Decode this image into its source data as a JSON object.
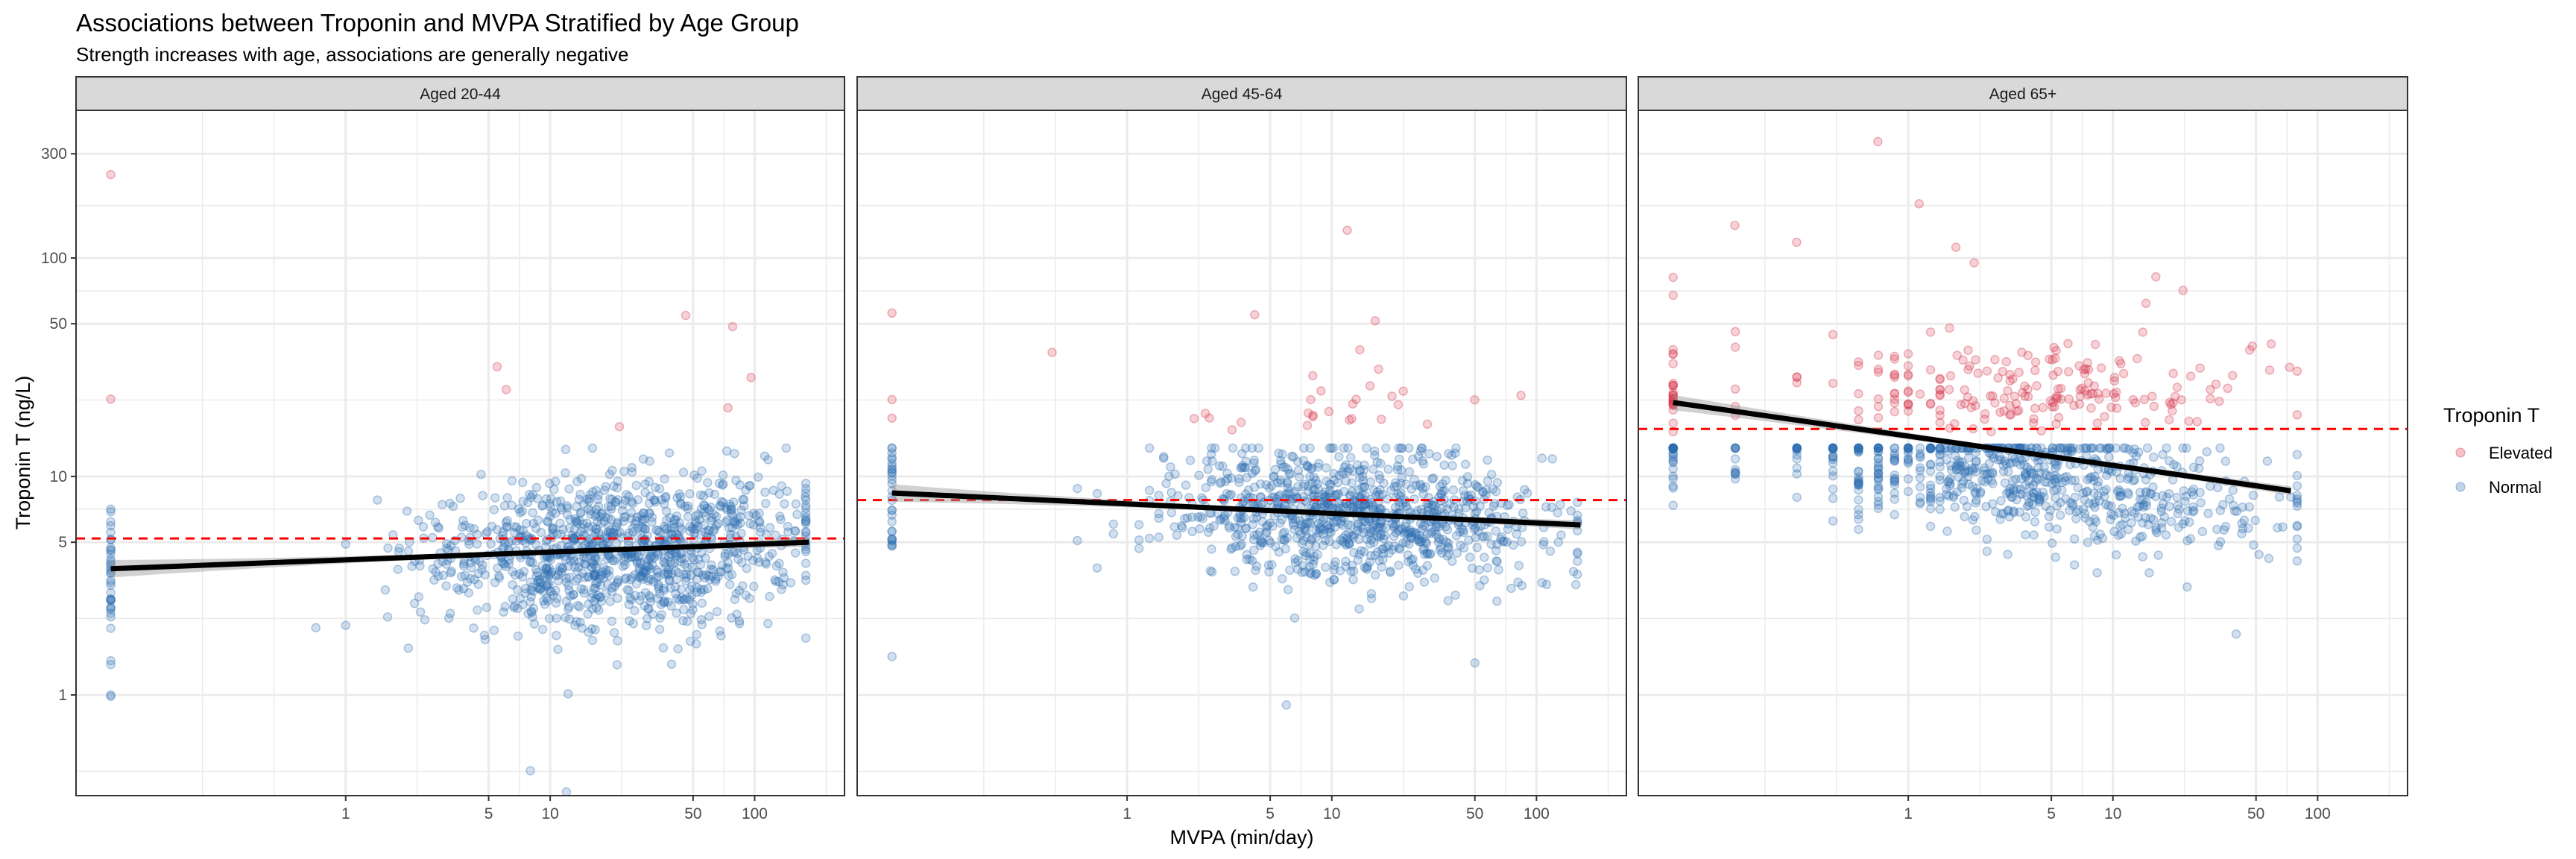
{
  "chart_data": {
    "type": "scatter",
    "title": "Associations between Troponin and MVPA Stratified by Age Group",
    "subtitle": "Strength increases with age, associations are generally negative",
    "xlabel": "MVPA (min/day)",
    "ylabel": "Troponin T (ng/L)",
    "x_scale": "log10",
    "y_scale": "log10",
    "xlim": [
      0.048,
      275
    ],
    "ylim": [
      0.346,
      474
    ],
    "x_ticks": [
      {
        "value": 1,
        "label": "1"
      },
      {
        "value": 5,
        "label": "5"
      },
      {
        "value": 10,
        "label": "10"
      },
      {
        "value": 50,
        "label": "50"
      },
      {
        "value": 100,
        "label": "100"
      }
    ],
    "y_ticks": [
      {
        "value": 1,
        "label": "1"
      },
      {
        "value": 5,
        "label": "5"
      },
      {
        "value": 10,
        "label": "10"
      },
      {
        "value": 50,
        "label": "50"
      },
      {
        "value": 100,
        "label": "100"
      },
      {
        "value": 300,
        "label": "300"
      }
    ],
    "x_minor_log": [
      -0.7,
      -0.35,
      0.35,
      0.85,
      1.35,
      1.85,
      2.35
    ],
    "y_minor_log": [
      -0.35,
      0.35,
      0.85,
      1.35,
      1.85,
      2.24
    ],
    "grid": true,
    "zero_plotted_at": 0.071,
    "legend": {
      "title": "Troponin T",
      "position": "right",
      "entries": [
        {
          "label": "Elevated",
          "color": "#d6334a"
        },
        {
          "label": "Normal",
          "color": "#2f6fb3"
        }
      ]
    },
    "panels": [
      {
        "label": "Aged 20-44",
        "threshold": 5.2,
        "fit": {
          "x": [
            0.071,
            184
          ],
          "y": [
            3.78,
            5.0
          ]
        },
        "se_log": {
          "center": 0.01,
          "edge": 0.04
        },
        "notable_points": [
          {
            "x": 0.071,
            "y": 241,
            "group": "Elevated"
          },
          {
            "x": 0.071,
            "y": 22.6,
            "group": "Elevated"
          },
          {
            "x": 46,
            "y": 54.6,
            "group": "Elevated"
          },
          {
            "x": 78,
            "y": 48.5,
            "group": "Elevated"
          },
          {
            "x": 5.5,
            "y": 31.8,
            "group": "Elevated"
          },
          {
            "x": 6.1,
            "y": 25,
            "group": "Elevated"
          },
          {
            "x": 96,
            "y": 28.4,
            "group": "Elevated"
          },
          {
            "x": 74,
            "y": 20.6,
            "group": "Elevated"
          },
          {
            "x": 21.8,
            "y": 16.9,
            "group": "Elevated"
          },
          {
            "x": 0.071,
            "y": 1.0,
            "group": "Normal"
          },
          {
            "x": 8,
            "y": 0.45,
            "group": "Normal"
          },
          {
            "x": 12,
            "y": 0.36,
            "group": "Normal"
          }
        ],
        "cloud": {
          "seed": 11,
          "n_normal": 1150,
          "zero_frac": 0.04,
          "x_log_mean": 1.35,
          "x_log_sd": 0.45,
          "x_log_max": 2.25,
          "y_log_mean": 0.66,
          "y_slope": 0.05,
          "y_log_sd": 0.17,
          "n_elevated": 0,
          "elev_y_log_mean": 1.3,
          "elev_y_log_sd": 0.1
        }
      },
      {
        "label": "Aged 45-64",
        "threshold": 7.8,
        "fit": {
          "x": [
            0.071,
            164
          ],
          "y": [
            8.4,
            6.0
          ]
        },
        "se_log": {
          "center": 0.01,
          "edge": 0.04
        },
        "notable_points": [
          {
            "x": 11.9,
            "y": 134,
            "group": "Elevated"
          },
          {
            "x": 0.071,
            "y": 56,
            "group": "Elevated"
          },
          {
            "x": 4.2,
            "y": 55,
            "group": "Elevated"
          },
          {
            "x": 16.3,
            "y": 51.6,
            "group": "Elevated"
          },
          {
            "x": 0.43,
            "y": 37,
            "group": "Elevated"
          },
          {
            "x": 13.7,
            "y": 38,
            "group": "Elevated"
          },
          {
            "x": 0.071,
            "y": 18.5,
            "group": "Elevated"
          },
          {
            "x": 84,
            "y": 23.5,
            "group": "Elevated"
          },
          {
            "x": 0.071,
            "y": 1.5,
            "group": "Normal"
          },
          {
            "x": 6,
            "y": 0.9,
            "group": "Normal"
          },
          {
            "x": 50,
            "y": 1.4,
            "group": "Normal"
          }
        ],
        "cloud": {
          "seed": 23,
          "n_normal": 1000,
          "zero_frac": 0.02,
          "x_log_mean": 1.1,
          "x_log_sd": 0.45,
          "x_log_max": 2.2,
          "y_log_mean": 0.82,
          "y_slope": -0.04,
          "y_log_sd": 0.15,
          "n_elevated": 26,
          "elev_y_log_mean": 1.3,
          "elev_y_log_sd": 0.1
        }
      },
      {
        "label": "Aged 65+",
        "threshold": 16.5,
        "fit": {
          "x": [
            0.071,
            74
          ],
          "y": [
            21.8,
            8.6
          ]
        },
        "se_log": {
          "center": 0.012,
          "edge": 0.035
        },
        "notable_points": [
          {
            "x": 0.71,
            "y": 341,
            "group": "Elevated"
          },
          {
            "x": 1.13,
            "y": 177,
            "group": "Elevated"
          },
          {
            "x": 0.142,
            "y": 141,
            "group": "Elevated"
          },
          {
            "x": 0.285,
            "y": 118,
            "group": "Elevated"
          },
          {
            "x": 1.71,
            "y": 112,
            "group": "Elevated"
          },
          {
            "x": 0.071,
            "y": 81.5,
            "group": "Elevated"
          },
          {
            "x": 0.071,
            "y": 67.5,
            "group": "Elevated"
          },
          {
            "x": 2.1,
            "y": 95,
            "group": "Elevated"
          },
          {
            "x": 16.2,
            "y": 82,
            "group": "Elevated"
          },
          {
            "x": 14.5,
            "y": 62,
            "group": "Elevated"
          },
          {
            "x": 73,
            "y": 31.6,
            "group": "Elevated"
          },
          {
            "x": 48,
            "y": 39.5,
            "group": "Elevated"
          },
          {
            "x": 40,
            "y": 1.9,
            "group": "Normal"
          }
        ],
        "cloud": {
          "seed": 37,
          "n_normal": 800,
          "zero_frac": 0.06,
          "x_log_mean": 0.55,
          "x_log_sd": 0.6,
          "x_log_max": 1.9,
          "y_log_mean": 1.0,
          "y_slope": -0.12,
          "y_log_sd": 0.14,
          "n_elevated": 230,
          "elev_y_log_mean": 1.38,
          "elev_y_log_sd": 0.13
        }
      }
    ]
  }
}
